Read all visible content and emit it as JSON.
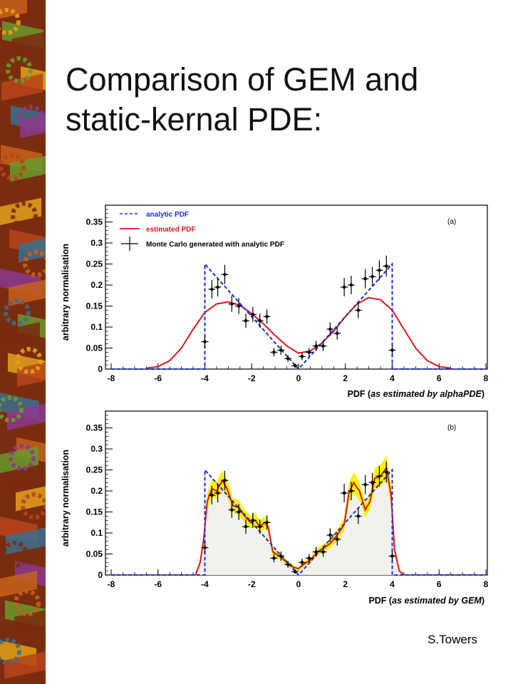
{
  "slide": {
    "title_line1": "Comparison of GEM and",
    "title_line2": "static-kernal PDE:",
    "author": "S.Towers"
  },
  "colors": {
    "analytic": "#1a2fd6",
    "estimated": "#e0141e",
    "mc": "#000000",
    "band": "#f6f000",
    "strip": [
      "#7a2c0f",
      "#c9621a",
      "#3d6e8c",
      "#e2a21c",
      "#6a9a2c",
      "#8b3a8f",
      "#b84419"
    ]
  },
  "chart_data": [
    {
      "type": "line",
      "panel_tag": "(a)",
      "xlabel_prefix": "PDF (",
      "xlabel_italic": "as estimated by alphaPDE",
      "xlabel_suffix": ")",
      "ylabel": "arbitrary normalisation",
      "xlim": [
        -8,
        8
      ],
      "ylim": [
        0,
        0.39
      ],
      "xticks": [
        -8,
        -6,
        -4,
        -2,
        0,
        2,
        4,
        6,
        8
      ],
      "xtick_labels": [
        "-8",
        "-6",
        "-4",
        "-2",
        "0",
        "2",
        "4",
        "6",
        "8"
      ],
      "yticks": [
        0,
        0.05,
        0.1,
        0.15,
        0.2,
        0.25,
        0.3,
        0.35
      ],
      "ytick_labels": [
        "0",
        "0.05",
        "0.1",
        "0.15",
        "0.2",
        "0.25",
        "0.3",
        "0.35"
      ],
      "legend_position": "top-left",
      "legend": [
        {
          "label": "analytic PDF",
          "style": "dashed"
        },
        {
          "label": "estimated PDF",
          "style": "solid"
        },
        {
          "label": "Monte Carlo generated with analytic PDF",
          "style": "errorbar"
        }
      ],
      "series": [
        {
          "name": "analytic PDF",
          "x": [
            -8,
            -4,
            -4,
            0,
            4,
            4,
            8
          ],
          "y": [
            0,
            0,
            0.25,
            0,
            0.25,
            0,
            0
          ]
        },
        {
          "name": "estimated PDF",
          "x": [
            -6.5,
            -6,
            -5.5,
            -5,
            -4.5,
            -4,
            -3.5,
            -3,
            -2.5,
            -2,
            -1.5,
            -1,
            -0.5,
            0,
            0.5,
            1,
            1.5,
            2,
            2.5,
            3,
            3.5,
            4,
            4.5,
            5,
            5.5,
            6,
            6.5
          ],
          "y": [
            0.002,
            0.006,
            0.02,
            0.05,
            0.095,
            0.135,
            0.155,
            0.16,
            0.152,
            0.132,
            0.108,
            0.08,
            0.055,
            0.038,
            0.043,
            0.062,
            0.09,
            0.125,
            0.155,
            0.17,
            0.165,
            0.14,
            0.095,
            0.05,
            0.02,
            0.006,
            0.002
          ]
        },
        {
          "name": "Monte Carlo generated with analytic PDF",
          "x": [
            -4.0,
            -3.7,
            -3.45,
            -3.15,
            -2.85,
            -2.55,
            -2.25,
            -1.95,
            -1.65,
            -1.35,
            -1.05,
            -0.75,
            -0.45,
            -0.15,
            0.15,
            0.45,
            0.75,
            1.05,
            1.35,
            1.65,
            1.95,
            2.25,
            2.55,
            2.85,
            3.15,
            3.45,
            3.75,
            4.0
          ],
          "y": [
            0.065,
            0.19,
            0.195,
            0.225,
            0.155,
            0.15,
            0.115,
            0.13,
            0.115,
            0.125,
            0.04,
            0.045,
            0.025,
            0.008,
            0.03,
            0.04,
            0.055,
            0.055,
            0.095,
            0.085,
            0.195,
            0.2,
            0.14,
            0.215,
            0.22,
            0.235,
            0.245,
            0.045
          ],
          "yerr": [
            0.013,
            0.022,
            0.022,
            0.023,
            0.019,
            0.019,
            0.017,
            0.018,
            0.017,
            0.017,
            0.01,
            0.011,
            0.008,
            0.005,
            0.009,
            0.01,
            0.012,
            0.012,
            0.016,
            0.015,
            0.022,
            0.022,
            0.019,
            0.023,
            0.023,
            0.024,
            0.025,
            0.011
          ]
        }
      ]
    },
    {
      "type": "line",
      "panel_tag": "(b)",
      "xlabel_prefix": "PDF (",
      "xlabel_italic": "as estimated by GEM",
      "xlabel_suffix": ")",
      "ylabel": "arbitrary normalisation",
      "xlim": [
        -8,
        8
      ],
      "ylim": [
        0,
        0.39
      ],
      "xticks": [
        -8,
        -6,
        -4,
        -2,
        0,
        2,
        4,
        6,
        8
      ],
      "xtick_labels": [
        "-8",
        "-6",
        "-4",
        "-2",
        "0",
        "2",
        "4",
        "6",
        "8"
      ],
      "yticks": [
        0,
        0.05,
        0.1,
        0.15,
        0.2,
        0.25,
        0.3,
        0.35
      ],
      "ytick_labels": [
        "0",
        "0.05",
        "0.1",
        "0.15",
        "0.2",
        "0.25",
        "0.3",
        "0.35"
      ],
      "series": [
        {
          "name": "analytic PDF",
          "x": [
            -8,
            -4,
            -4,
            0,
            4,
            4,
            8
          ],
          "y": [
            0,
            0,
            0.25,
            0,
            0.25,
            0,
            0
          ]
        },
        {
          "name": "estimated PDF",
          "x": [
            -4.4,
            -4.2,
            -4.05,
            -3.9,
            -3.7,
            -3.5,
            -3.25,
            -3.05,
            -2.8,
            -2.55,
            -2.3,
            -2.05,
            -1.85,
            -1.65,
            -1.45,
            -1.3,
            -1.1,
            -0.8,
            -0.5,
            -0.2,
            0.0,
            0.2,
            0.5,
            0.8,
            1.1,
            1.35,
            1.65,
            1.95,
            2.15,
            2.35,
            2.6,
            2.85,
            3.05,
            3.25,
            3.5,
            3.75,
            3.95,
            4.1,
            4.3,
            4.5
          ],
          "y": [
            0.0,
            0.03,
            0.085,
            0.175,
            0.205,
            0.2,
            0.225,
            0.205,
            0.165,
            0.16,
            0.14,
            0.125,
            0.13,
            0.115,
            0.125,
            0.115,
            0.055,
            0.045,
            0.03,
            0.018,
            0.015,
            0.025,
            0.035,
            0.055,
            0.065,
            0.075,
            0.095,
            0.12,
            0.195,
            0.22,
            0.2,
            0.155,
            0.175,
            0.23,
            0.235,
            0.255,
            0.19,
            0.06,
            0.01,
            0.0
          ],
          "band_lo": [
            0.0,
            0.022,
            0.07,
            0.155,
            0.185,
            0.18,
            0.2,
            0.185,
            0.148,
            0.142,
            0.124,
            0.11,
            0.114,
            0.1,
            0.11,
            0.1,
            0.046,
            0.037,
            0.024,
            0.013,
            0.01,
            0.019,
            0.028,
            0.046,
            0.055,
            0.064,
            0.082,
            0.104,
            0.172,
            0.195,
            0.177,
            0.137,
            0.155,
            0.205,
            0.21,
            0.226,
            0.168,
            0.05,
            0.006,
            0.0
          ],
          "band_hi": [
            0.0,
            0.038,
            0.1,
            0.195,
            0.228,
            0.222,
            0.25,
            0.227,
            0.183,
            0.178,
            0.156,
            0.14,
            0.147,
            0.13,
            0.14,
            0.13,
            0.065,
            0.053,
            0.036,
            0.023,
            0.02,
            0.031,
            0.042,
            0.064,
            0.075,
            0.086,
            0.108,
            0.136,
            0.218,
            0.245,
            0.223,
            0.173,
            0.195,
            0.255,
            0.262,
            0.284,
            0.212,
            0.07,
            0.014,
            0.0
          ]
        },
        {
          "name": "Monte Carlo generated with analytic PDF",
          "x": [
            -4.0,
            -3.7,
            -3.45,
            -3.15,
            -2.85,
            -2.55,
            -2.25,
            -1.95,
            -1.65,
            -1.35,
            -1.05,
            -0.75,
            -0.45,
            -0.15,
            0.15,
            0.45,
            0.75,
            1.05,
            1.35,
            1.65,
            1.95,
            2.25,
            2.55,
            2.85,
            3.15,
            3.45,
            3.75,
            4.0
          ],
          "y": [
            0.065,
            0.19,
            0.195,
            0.225,
            0.155,
            0.15,
            0.115,
            0.13,
            0.115,
            0.125,
            0.04,
            0.045,
            0.025,
            0.008,
            0.03,
            0.04,
            0.055,
            0.055,
            0.095,
            0.085,
            0.195,
            0.2,
            0.14,
            0.215,
            0.22,
            0.235,
            0.245,
            0.045
          ],
          "yerr": [
            0.013,
            0.022,
            0.022,
            0.023,
            0.019,
            0.019,
            0.017,
            0.018,
            0.017,
            0.017,
            0.01,
            0.011,
            0.008,
            0.005,
            0.009,
            0.01,
            0.012,
            0.012,
            0.016,
            0.015,
            0.022,
            0.022,
            0.019,
            0.023,
            0.023,
            0.024,
            0.025,
            0.011
          ]
        }
      ]
    }
  ]
}
